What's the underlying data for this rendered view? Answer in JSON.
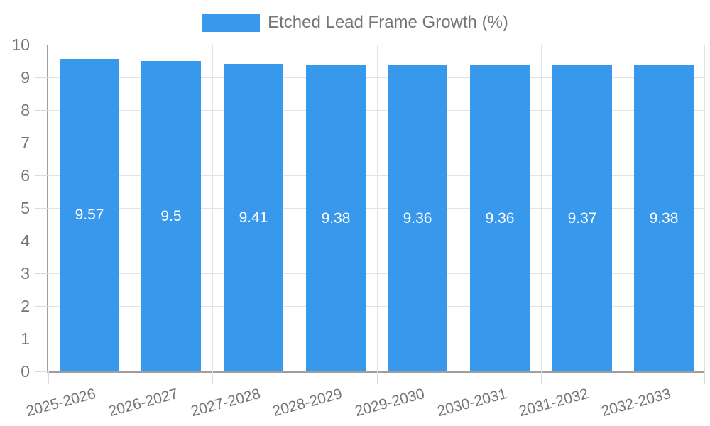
{
  "legend": {
    "label": "Etched Lead Frame Growth (%)",
    "swatch_color": "#3898ec"
  },
  "chart_data": {
    "type": "bar",
    "title": "",
    "categories": [
      "2025-2026",
      "2026-2027",
      "2027-2028",
      "2028-2029",
      "2029-2030",
      "2030-2031",
      "2031-2032",
      "2032-2033"
    ],
    "series": [
      {
        "name": "Etched Lead Frame Growth (%)",
        "values": [
          9.57,
          9.5,
          9.41,
          9.38,
          9.36,
          9.36,
          9.37,
          9.38
        ],
        "value_labels": [
          "9.57",
          "9.5",
          "9.41",
          "9.38",
          "9.36",
          "9.36",
          "9.37",
          "9.38"
        ]
      }
    ],
    "xlabel": "",
    "ylabel": "",
    "ylim": [
      0,
      10
    ],
    "yticks": [
      "0",
      "1",
      "2",
      "3",
      "4",
      "5",
      "6",
      "7",
      "8",
      "9",
      "10"
    ],
    "grid": true,
    "legend_position": "top-center",
    "x_label_rotation_deg": -15,
    "colors": {
      "bar": "#3898ec",
      "bar_label_text": "#ffffff",
      "axis_line": "#9e9e9e",
      "grid_line": "#e3e3e3",
      "tick_line": "#dcdcdc",
      "text": "#757575",
      "background": "#ffffff"
    }
  }
}
